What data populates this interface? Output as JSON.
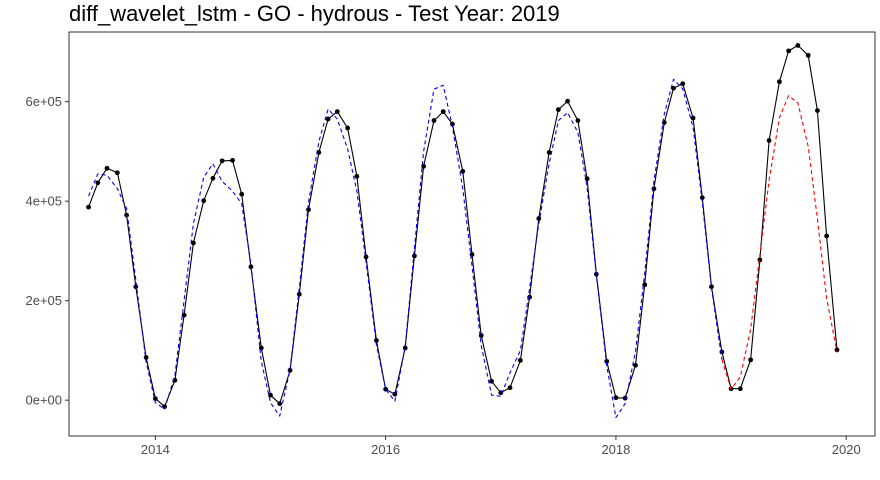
{
  "chart_data": {
    "type": "line",
    "title": "diff_wavelet_lstm - GO - hydrous - Test Year: 2019",
    "xlabel": "",
    "ylabel": "",
    "xlim": [
      2013.25,
      2020.25
    ],
    "ylim": [
      -72000,
      740000
    ],
    "grid": false,
    "x_ticks": [
      2014,
      2016,
      2018,
      2020
    ],
    "x_tick_labels": [
      "2014",
      "2016",
      "2018",
      "2020"
    ],
    "y_ticks": [
      0,
      200000,
      400000,
      600000
    ],
    "y_tick_labels": [
      "0e+00",
      "2e+05",
      "4e+05",
      "6e+05"
    ],
    "colors": {
      "observed": "#000000",
      "fitted": "#0000ff",
      "forecast": "#ff0000"
    },
    "series": [
      {
        "style": "solid-line-with-points",
        "points": [
          [
            2013.42,
            388000
          ],
          [
            2013.5,
            437000
          ],
          [
            2013.58,
            466000
          ],
          [
            2013.67,
            457000
          ],
          [
            2013.75,
            372000
          ],
          [
            2013.83,
            228000
          ],
          [
            2013.92,
            86000
          ],
          [
            2014.0,
            3000
          ],
          [
            2014.08,
            -13000
          ],
          [
            2014.17,
            40000
          ],
          [
            2014.25,
            171000
          ],
          [
            2014.33,
            316000
          ],
          [
            2014.42,
            401000
          ],
          [
            2014.5,
            446000
          ],
          [
            2014.58,
            481000
          ],
          [
            2014.67,
            482000
          ],
          [
            2014.75,
            414000
          ],
          [
            2014.83,
            268000
          ],
          [
            2014.92,
            105000
          ],
          [
            2015.0,
            10000
          ],
          [
            2015.08,
            -7000
          ],
          [
            2015.17,
            60000
          ],
          [
            2015.25,
            213000
          ],
          [
            2015.33,
            383000
          ],
          [
            2015.42,
            498000
          ],
          [
            2015.5,
            565000
          ],
          [
            2015.58,
            580000
          ],
          [
            2015.67,
            547000
          ],
          [
            2015.75,
            450000
          ],
          [
            2015.83,
            288000
          ],
          [
            2015.92,
            120000
          ],
          [
            2016.0,
            22000
          ],
          [
            2016.08,
            12000
          ],
          [
            2016.17,
            105000
          ],
          [
            2016.25,
            290000
          ],
          [
            2016.33,
            470000
          ],
          [
            2016.42,
            562000
          ],
          [
            2016.5,
            580000
          ],
          [
            2016.58,
            555000
          ],
          [
            2016.67,
            460000
          ],
          [
            2016.75,
            293000
          ],
          [
            2016.83,
            130000
          ],
          [
            2016.92,
            38000
          ],
          [
            2017.0,
            15000
          ],
          [
            2017.08,
            25000
          ],
          [
            2017.17,
            80000
          ],
          [
            2017.25,
            207000
          ],
          [
            2017.33,
            365000
          ],
          [
            2017.42,
            498000
          ],
          [
            2017.5,
            584000
          ],
          [
            2017.58,
            601000
          ],
          [
            2017.67,
            562000
          ],
          [
            2017.75,
            445000
          ],
          [
            2017.83,
            253000
          ],
          [
            2017.92,
            78000
          ],
          [
            2018.0,
            5000
          ],
          [
            2018.08,
            4000
          ],
          [
            2018.17,
            70000
          ],
          [
            2018.25,
            232000
          ],
          [
            2018.33,
            425000
          ],
          [
            2018.42,
            558000
          ],
          [
            2018.5,
            627000
          ],
          [
            2018.58,
            636000
          ],
          [
            2018.67,
            567000
          ],
          [
            2018.75,
            407000
          ],
          [
            2018.83,
            228000
          ],
          [
            2018.92,
            97000
          ],
          [
            2019.0,
            23000
          ],
          [
            2019.08,
            23000
          ],
          [
            2019.17,
            81000
          ],
          [
            2019.25,
            282000
          ],
          [
            2019.33,
            522000
          ],
          [
            2019.42,
            640000
          ],
          [
            2019.5,
            702000
          ],
          [
            2019.58,
            713000
          ],
          [
            2019.67,
            693000
          ],
          [
            2019.75,
            582000
          ],
          [
            2019.83,
            330000
          ],
          [
            2019.92,
            101000
          ]
        ]
      },
      {
        "style": "dashed-line",
        "points": [
          [
            2013.42,
            410000
          ],
          [
            2013.5,
            455000
          ],
          [
            2013.58,
            452000
          ],
          [
            2013.67,
            425000
          ],
          [
            2013.75,
            385000
          ],
          [
            2013.83,
            242000
          ],
          [
            2013.92,
            77000
          ],
          [
            2014.0,
            -5000
          ],
          [
            2014.08,
            -18000
          ],
          [
            2014.17,
            50000
          ],
          [
            2014.25,
            200000
          ],
          [
            2014.33,
            355000
          ],
          [
            2014.42,
            448000
          ],
          [
            2014.5,
            475000
          ],
          [
            2014.58,
            440000
          ],
          [
            2014.67,
            420000
          ],
          [
            2014.75,
            395000
          ],
          [
            2014.83,
            275000
          ],
          [
            2014.92,
            78000
          ],
          [
            2015.0,
            -5000
          ],
          [
            2015.08,
            -32000
          ],
          [
            2015.17,
            62000
          ],
          [
            2015.25,
            225000
          ],
          [
            2015.33,
            398000
          ],
          [
            2015.42,
            520000
          ],
          [
            2015.5,
            585000
          ],
          [
            2015.58,
            565000
          ],
          [
            2015.67,
            505000
          ],
          [
            2015.75,
            420000
          ],
          [
            2015.83,
            277000
          ],
          [
            2015.92,
            112000
          ],
          [
            2016.0,
            22000
          ],
          [
            2016.08,
            -2000
          ],
          [
            2016.17,
            108000
          ],
          [
            2016.25,
            305000
          ],
          [
            2016.33,
            500000
          ],
          [
            2016.42,
            625000
          ],
          [
            2016.5,
            633000
          ],
          [
            2016.58,
            550000
          ],
          [
            2016.67,
            425000
          ],
          [
            2016.75,
            270000
          ],
          [
            2016.83,
            110000
          ],
          [
            2016.92,
            10000
          ],
          [
            2017.0,
            8000
          ],
          [
            2017.08,
            55000
          ],
          [
            2017.17,
            100000
          ],
          [
            2017.25,
            225000
          ],
          [
            2017.33,
            355000
          ],
          [
            2017.42,
            475000
          ],
          [
            2017.5,
            562000
          ],
          [
            2017.58,
            578000
          ],
          [
            2017.67,
            538000
          ],
          [
            2017.75,
            428000
          ],
          [
            2017.83,
            250000
          ],
          [
            2017.92,
            70000
          ],
          [
            2018.0,
            -35000
          ],
          [
            2018.08,
            -7000
          ],
          [
            2018.17,
            98000
          ],
          [
            2018.25,
            255000
          ],
          [
            2018.33,
            440000
          ],
          [
            2018.42,
            575000
          ],
          [
            2018.5,
            645000
          ],
          [
            2018.58,
            626000
          ],
          [
            2018.67,
            548000
          ],
          [
            2018.75,
            398000
          ],
          [
            2018.83,
            225000
          ],
          [
            2018.92,
            82000
          ]
        ]
      },
      {
        "style": "dashed-line",
        "points": [
          [
            2018.92,
            82000
          ],
          [
            2019.0,
            22000
          ],
          [
            2019.08,
            47000
          ],
          [
            2019.17,
            142000
          ],
          [
            2019.25,
            292000
          ],
          [
            2019.33,
            442000
          ],
          [
            2019.42,
            568000
          ],
          [
            2019.5,
            612000
          ],
          [
            2019.58,
            597000
          ],
          [
            2019.67,
            510000
          ],
          [
            2019.75,
            365000
          ],
          [
            2019.83,
            205000
          ],
          [
            2019.92,
            97000
          ]
        ]
      }
    ]
  }
}
